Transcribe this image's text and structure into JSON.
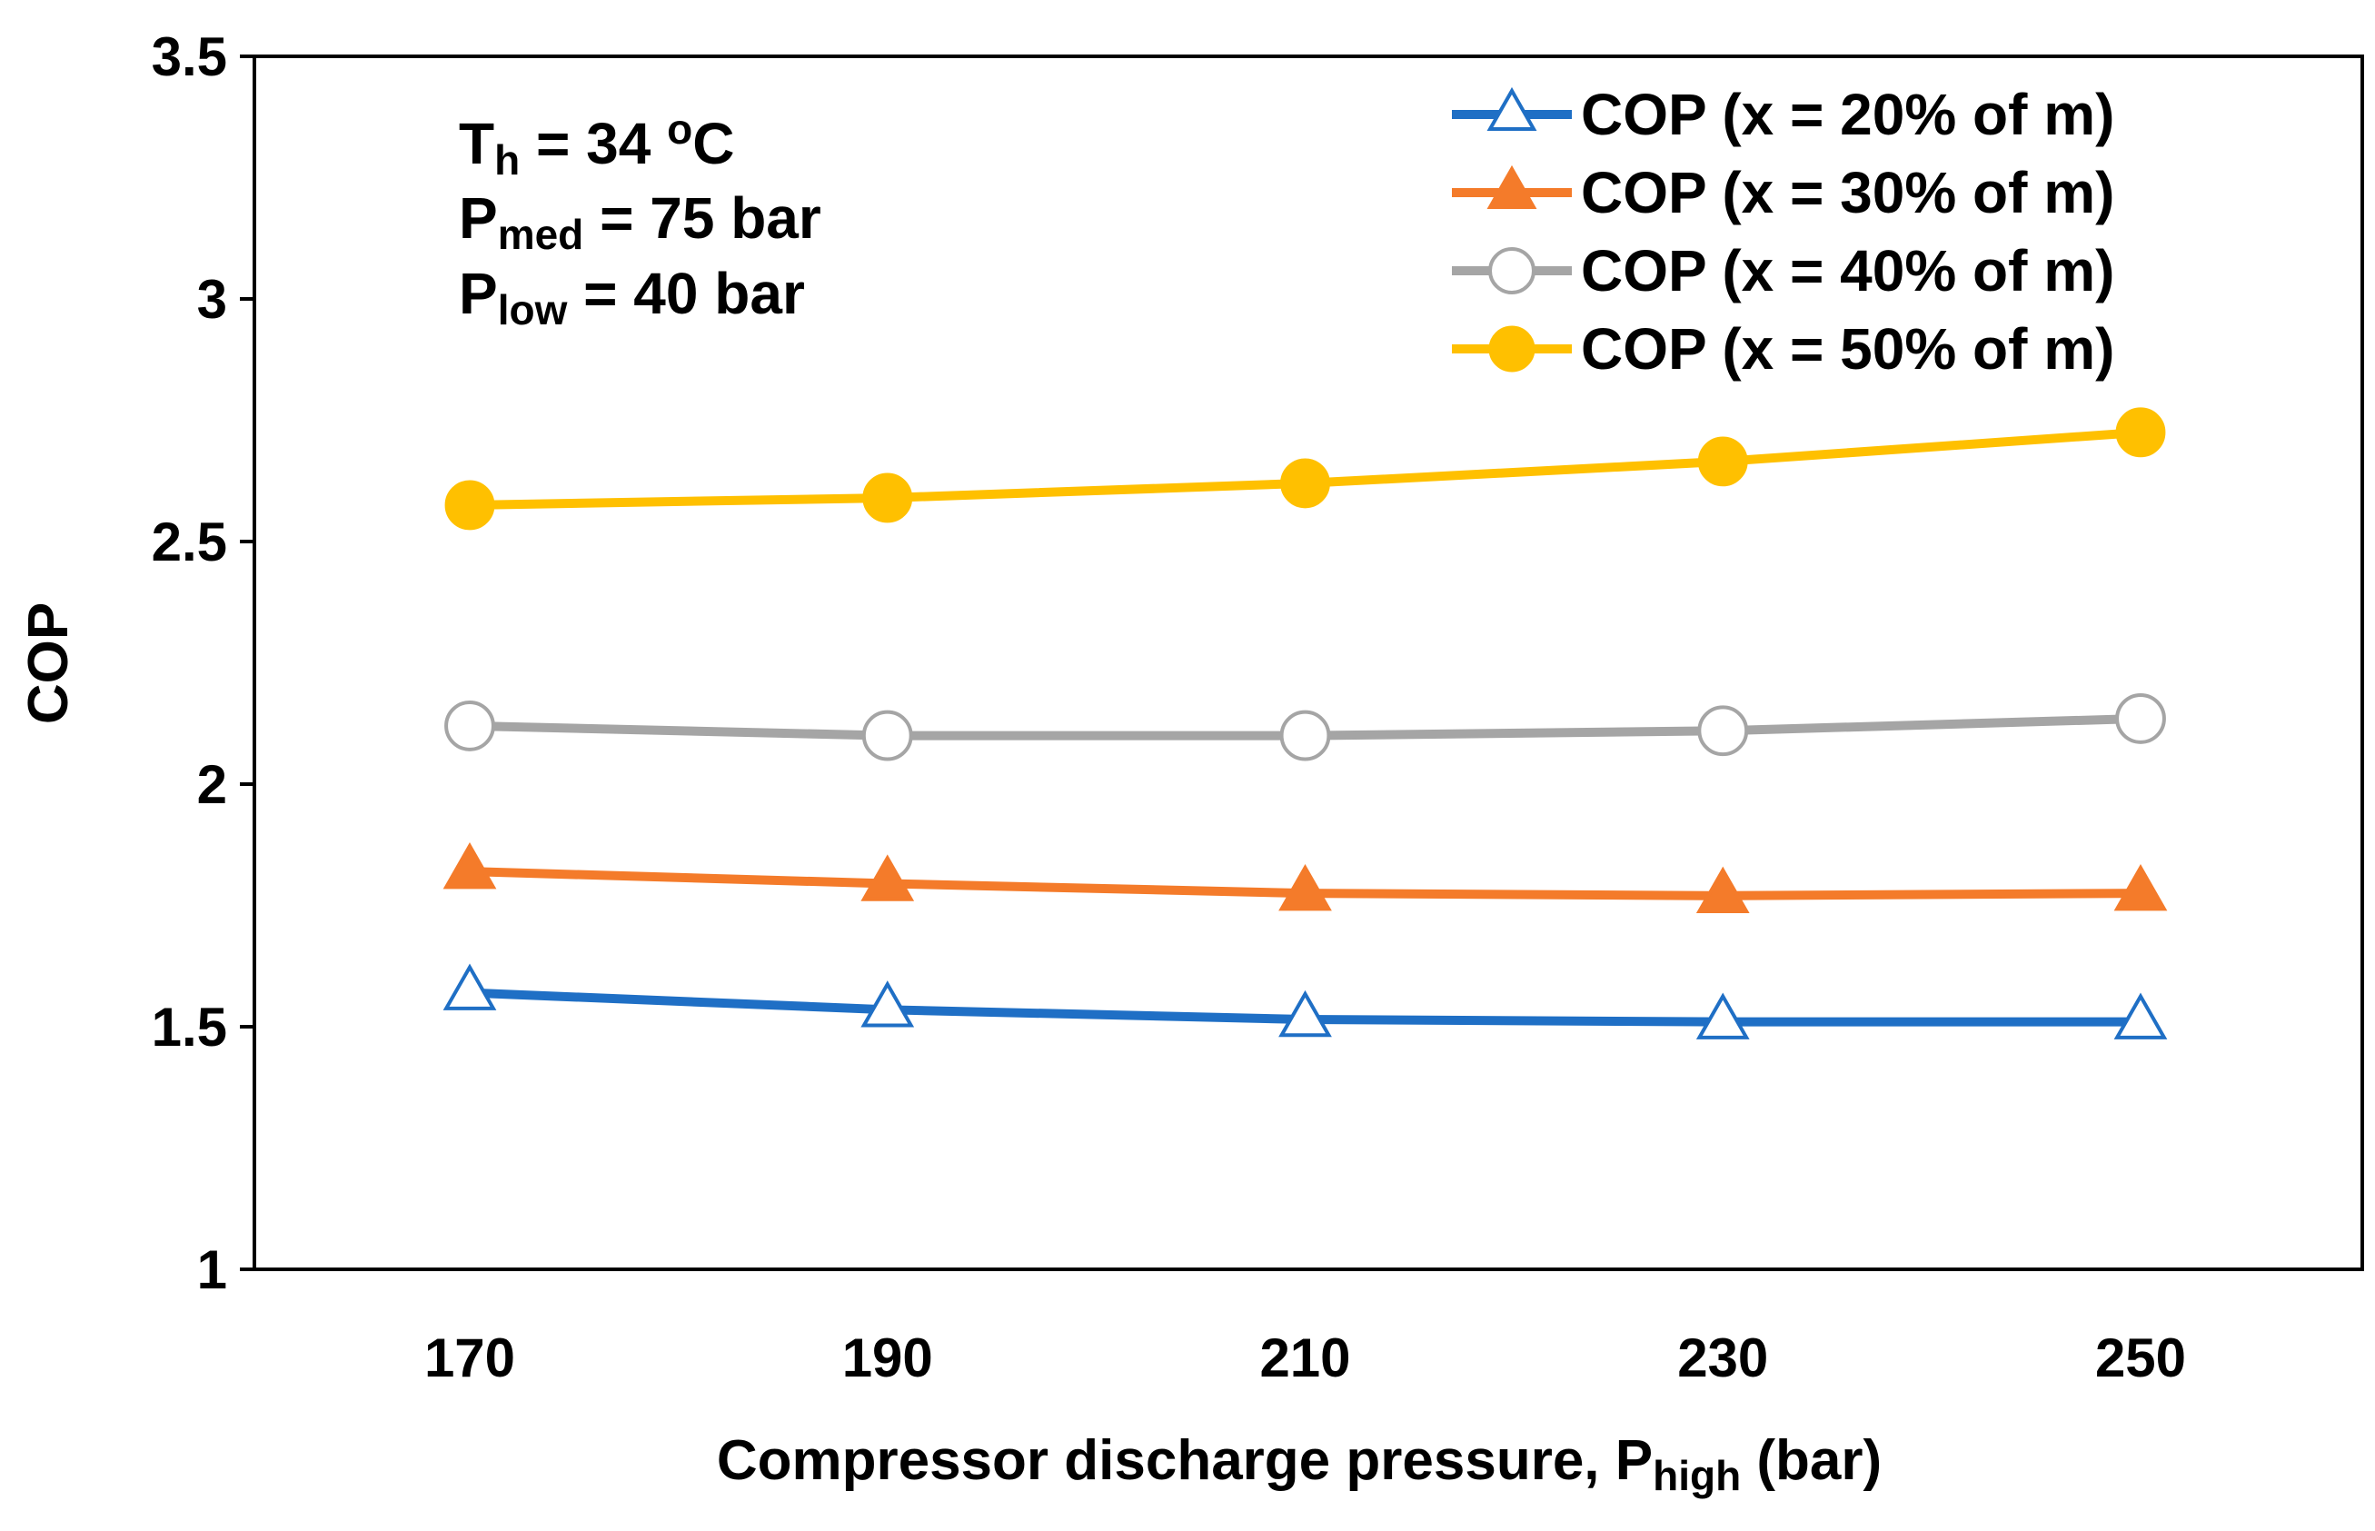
{
  "chart_data": {
    "type": "line",
    "title": "",
    "xlabel_prefix": "Compressor discharge pressure, P",
    "xlabel_sub": "high",
    "xlabel_suffix": " (bar)",
    "ylabel": "COP",
    "x": [
      170,
      190,
      210,
      230,
      250
    ],
    "x_tick_labels": [
      "170",
      "190",
      "210",
      "230",
      "250"
    ],
    "y_tick_labels": [
      "1",
      "1.5",
      "2",
      "2.5",
      "3",
      "3.5"
    ],
    "ylim": [
      1,
      3.5
    ],
    "grid": false,
    "legend_position": "top-right",
    "series": [
      {
        "name": "COP (x = 20%  of m)",
        "color": "#1f6fc5",
        "marker": "triangle-open",
        "values": [
          1.57,
          1.535,
          1.515,
          1.51,
          1.51
        ]
      },
      {
        "name": "COP (x = 30%  of m)",
        "color": "#f47b2a",
        "marker": "triangle-filled",
        "values": [
          1.82,
          1.795,
          1.775,
          1.77,
          1.775
        ]
      },
      {
        "name": "COP (x = 40%  of m)",
        "color": "#a5a5a5",
        "marker": "circle-open",
        "values": [
          2.12,
          2.1,
          2.1,
          2.11,
          2.135
        ]
      },
      {
        "name": "COP (x = 50%  of m)",
        "color": "#ffc000",
        "marker": "circle-filled",
        "values": [
          2.575,
          2.59,
          2.62,
          2.665,
          2.725
        ]
      }
    ],
    "annotations": {
      "line1": {
        "main": "T",
        "sub": "h",
        "rest": " = 34 ",
        "sup": "o",
        "end": "C"
      },
      "line2": {
        "main": "P",
        "sub": "med",
        "rest": " = 75 bar"
      },
      "line3": {
        "main": "P",
        "sub": "low",
        "rest": " = 40 bar"
      }
    }
  }
}
